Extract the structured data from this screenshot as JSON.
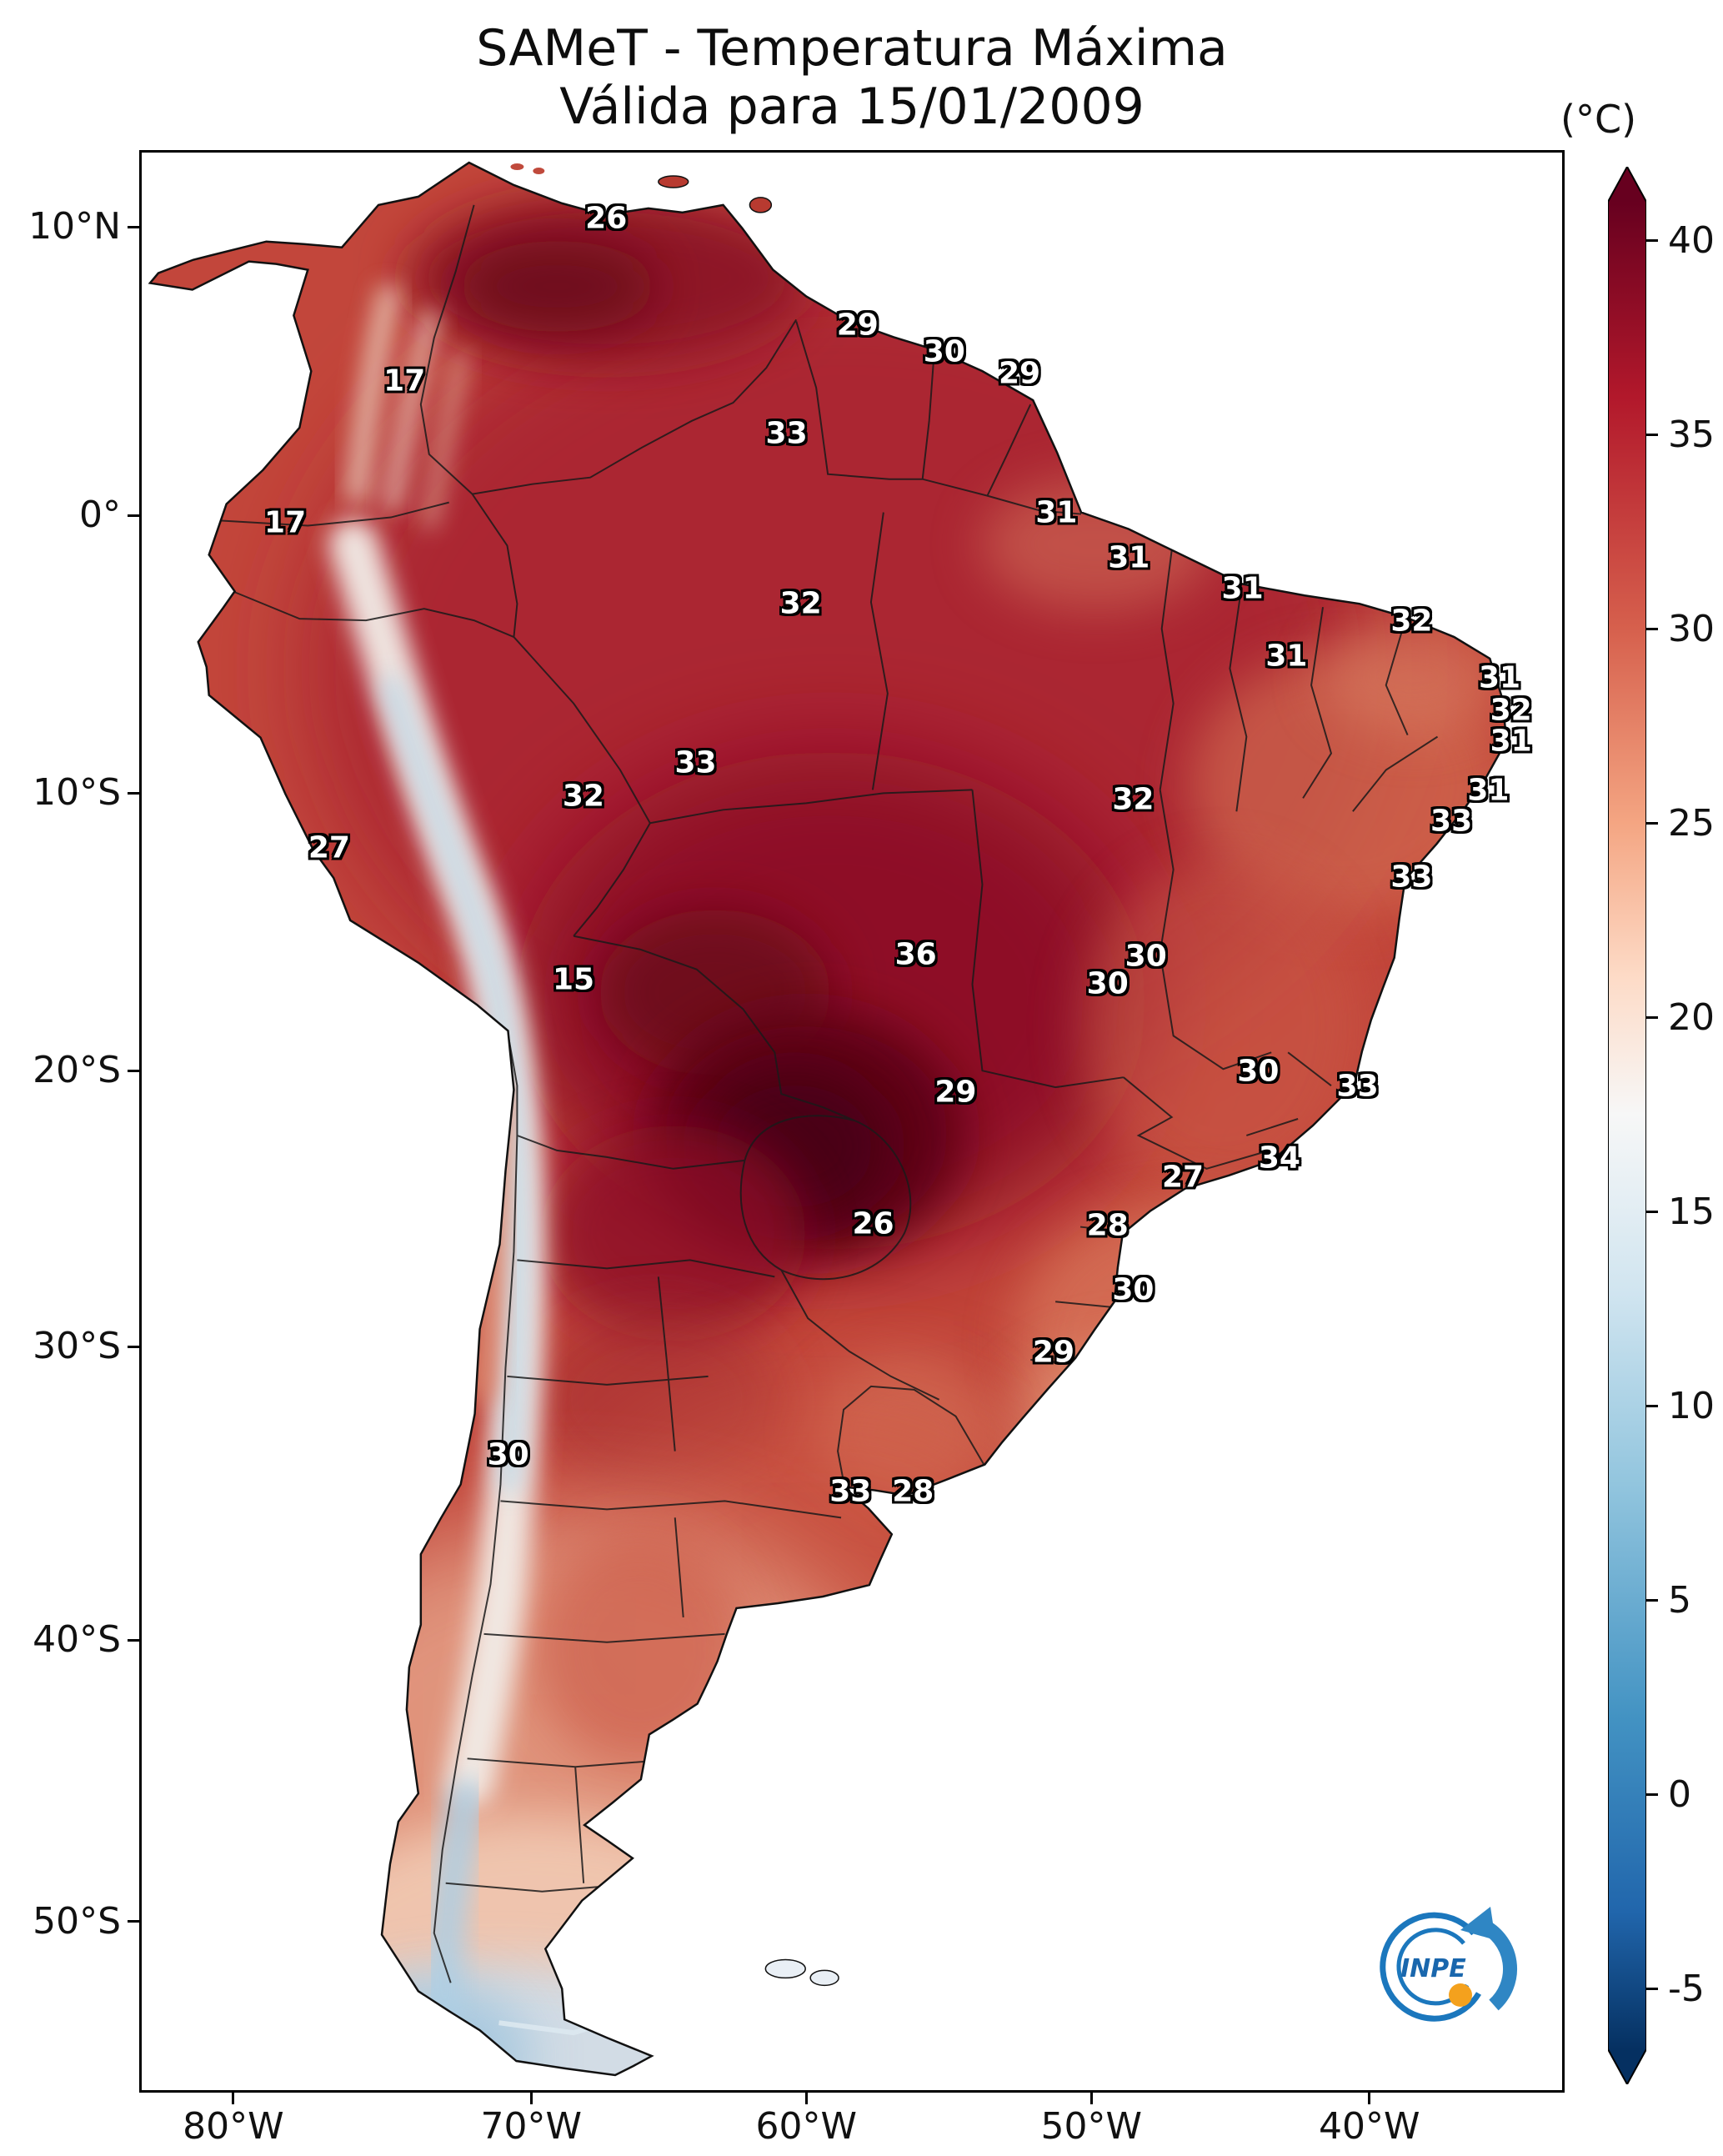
{
  "title": {
    "line1": "SAMeT - Temperatura Máxima",
    "line2": "Válida para 15/01/2009"
  },
  "colorbar": {
    "unit": "(°C)",
    "tick_values": [
      40,
      35,
      30,
      25,
      20,
      15,
      10,
      5,
      0,
      -5
    ],
    "color_max": "#67001f",
    "color_mid": "#f7f7f7",
    "color_min": "#053061"
  },
  "axes": {
    "lat_ticks": [
      {
        "label": "10°N",
        "pct": 3.95
      },
      {
        "label": "0°",
        "pct": 18.8
      },
      {
        "label": "10°S",
        "pct": 33.1
      },
      {
        "label": "20°S",
        "pct": 47.4
      },
      {
        "label": "30°S",
        "pct": 61.6
      },
      {
        "label": "40°S",
        "pct": 76.7
      },
      {
        "label": "50°S",
        "pct": 91.2
      }
    ],
    "lon_ticks": [
      {
        "label": "80°W",
        "pct": 6.6
      },
      {
        "label": "70°W",
        "pct": 27.5
      },
      {
        "label": "60°W",
        "pct": 46.8
      },
      {
        "label": "50°W",
        "pct": 66.8
      },
      {
        "label": "40°W",
        "pct": 86.3
      }
    ]
  },
  "logo": {
    "text": "INPE"
  },
  "chart_data": {
    "type": "heatmap",
    "title": "SAMeT - Temperatura Máxima",
    "subtitle": "Válida para 15/01/2009",
    "date": "15/01/2009",
    "variable": "Temperatura Máxima",
    "unit": "°C",
    "region": "South America",
    "colormap": "blue-white-red (cold to hot), hot = dark red, cold = dark blue",
    "colorbar_ticks": [
      40,
      35,
      30,
      25,
      20,
      15,
      10,
      5,
      0,
      -5
    ],
    "colorbar_range": [
      -5,
      40
    ],
    "x_axis": {
      "ticks": [
        "80°W",
        "70°W",
        "60°W",
        "50°W",
        "40°W"
      ]
    },
    "y_axis": {
      "ticks": [
        "10°N",
        "0°",
        "10°S",
        "20°S",
        "30°S",
        "40°S",
        "50°S"
      ]
    },
    "stations_note": "t = max temperature label (°C); x,y = position as % of map plot area",
    "stations": [
      {
        "t": 26,
        "x": 32.7,
        "y": 3.4
      },
      {
        "t": 29,
        "x": 50.4,
        "y": 8.9
      },
      {
        "t": 30,
        "x": 56.5,
        "y": 10.3
      },
      {
        "t": 29,
        "x": 61.8,
        "y": 11.4
      },
      {
        "t": 17,
        "x": 18.5,
        "y": 11.8
      },
      {
        "t": 33,
        "x": 45.4,
        "y": 14.5
      },
      {
        "t": 17,
        "x": 10.1,
        "y": 19.1
      },
      {
        "t": 31,
        "x": 64.4,
        "y": 18.6
      },
      {
        "t": 31,
        "x": 69.5,
        "y": 20.9
      },
      {
        "t": 32,
        "x": 46.4,
        "y": 23.3
      },
      {
        "t": 31,
        "x": 77.5,
        "y": 22.5
      },
      {
        "t": 32,
        "x": 89.4,
        "y": 24.2
      },
      {
        "t": 31,
        "x": 80.6,
        "y": 26.0
      },
      {
        "t": 31,
        "x": 95.6,
        "y": 27.1
      },
      {
        "t": 32,
        "x": 96.4,
        "y": 28.8
      },
      {
        "t": 31,
        "x": 96.4,
        "y": 30.4
      },
      {
        "t": 33,
        "x": 39.0,
        "y": 31.5
      },
      {
        "t": 32,
        "x": 31.1,
        "y": 33.2
      },
      {
        "t": 32,
        "x": 69.8,
        "y": 33.4
      },
      {
        "t": 31,
        "x": 94.8,
        "y": 32.9
      },
      {
        "t": 33,
        "x": 92.2,
        "y": 34.5
      },
      {
        "t": 27,
        "x": 13.2,
        "y": 35.9
      },
      {
        "t": 33,
        "x": 89.4,
        "y": 37.4
      },
      {
        "t": 36,
        "x": 54.5,
        "y": 41.4
      },
      {
        "t": 30,
        "x": 70.7,
        "y": 41.5
      },
      {
        "t": 30,
        "x": 68.0,
        "y": 42.9
      },
      {
        "t": 15,
        "x": 30.4,
        "y": 42.7
      },
      {
        "t": 30,
        "x": 78.6,
        "y": 47.4
      },
      {
        "t": 33,
        "x": 85.6,
        "y": 48.2
      },
      {
        "t": 29,
        "x": 57.3,
        "y": 48.5
      },
      {
        "t": 34,
        "x": 80.1,
        "y": 51.9
      },
      {
        "t": 27,
        "x": 73.3,
        "y": 52.9
      },
      {
        "t": 26,
        "x": 51.5,
        "y": 55.3
      },
      {
        "t": 28,
        "x": 68.0,
        "y": 55.4
      },
      {
        "t": 30,
        "x": 69.8,
        "y": 58.7
      },
      {
        "t": 29,
        "x": 64.2,
        "y": 61.9
      },
      {
        "t": 30,
        "x": 25.8,
        "y": 67.2
      },
      {
        "t": 33,
        "x": 49.9,
        "y": 69.1
      },
      {
        "t": 28,
        "x": 54.3,
        "y": 69.1
      }
    ]
  }
}
